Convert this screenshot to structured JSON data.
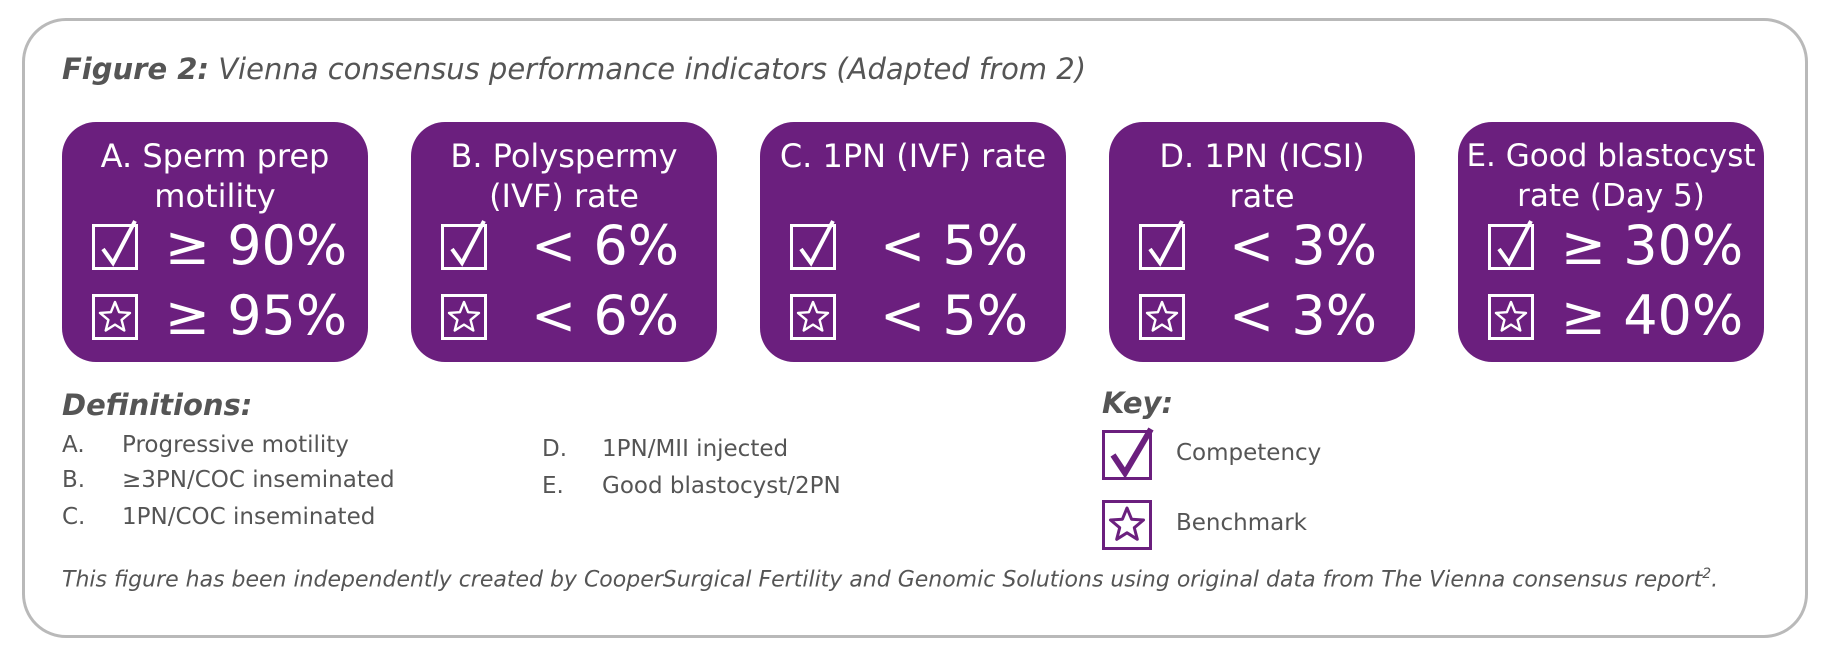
{
  "figure": {
    "label": "Figure 2:",
    "title": "Vienna consensus performance indicators (Adapted from 2)"
  },
  "colors": {
    "accent": "#6b1f7e",
    "text": "#555555",
    "frame": "#b9b9b9"
  },
  "cards": [
    {
      "heading_line1": "A. Sperm prep",
      "heading_line2": "motility",
      "competency": "≥ 90%",
      "benchmark": "≥ 95%"
    },
    {
      "heading_line1": "B. Polyspermy",
      "heading_line2": "(IVF) rate",
      "competency": "< 6%",
      "benchmark": "< 6%"
    },
    {
      "heading_line1": "C. 1PN (IVF) rate",
      "heading_line2": "",
      "competency": "< 5%",
      "benchmark": "< 5%"
    },
    {
      "heading_line1": "D. 1PN (ICSI)",
      "heading_line2": "rate",
      "competency": "< 3%",
      "benchmark": "< 3%"
    },
    {
      "heading_line1": "E. Good blastocyst",
      "heading_line2": "rate (Day 5)",
      "competency": "≥ 30%",
      "benchmark": "≥ 40%"
    }
  ],
  "icons": {
    "competency": "checkbox-check-icon",
    "benchmark": "checkbox-star-icon"
  },
  "definitions": {
    "title": "Definitions:",
    "items": [
      {
        "letter": "A.",
        "text": "Progressive motility"
      },
      {
        "letter": "B.",
        "text": "≥3PN/COC inseminated"
      },
      {
        "letter": "C.",
        "text": "1PN/COC inseminated"
      },
      {
        "letter": "D.",
        "text": "1PN/MII injected"
      },
      {
        "letter": "E.",
        "text": "Good blastocyst/2PN"
      }
    ]
  },
  "key": {
    "title": "Key:",
    "competency_label": "Competency",
    "benchmark_label": "Benchmark"
  },
  "footnote": {
    "text": "This figure has been independently created by CooperSurgical Fertility and Genomic Solutions using original data from The Vienna consensus report",
    "superscript": "2",
    "end": "."
  }
}
